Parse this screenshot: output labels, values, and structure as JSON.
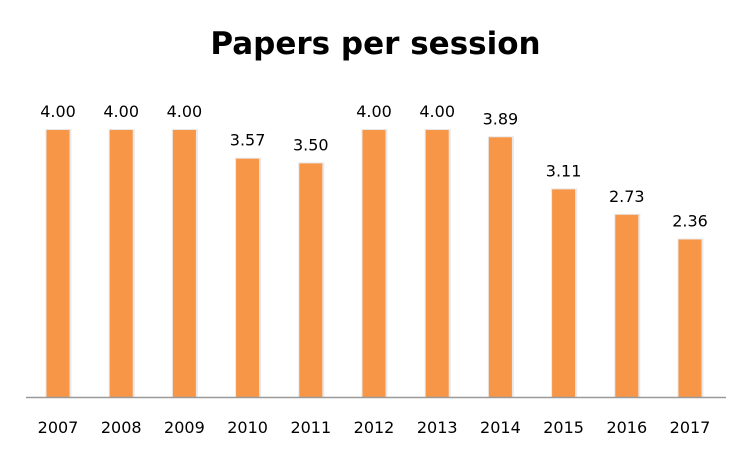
{
  "chart_data": {
    "type": "bar",
    "title": "Papers per session",
    "xlabel": "",
    "ylabel": "",
    "categories": [
      "2007",
      "2008",
      "2009",
      "2010",
      "2011",
      "2012",
      "2013",
      "2014",
      "2015",
      "2016",
      "2017"
    ],
    "values": [
      4.0,
      4.0,
      4.0,
      3.57,
      3.5,
      4.0,
      4.0,
      3.89,
      3.11,
      2.73,
      2.36
    ],
    "data_labels": [
      "4.00",
      "4.00",
      "4.00",
      "3.57",
      "3.50",
      "4.00",
      "4.00",
      "3.89",
      "3.11",
      "2.73",
      "2.36"
    ],
    "ylim": [
      0,
      4
    ],
    "grid": false,
    "legend": "none",
    "bar_color": "#F79646",
    "axis_color": "#9a9a9a"
  }
}
